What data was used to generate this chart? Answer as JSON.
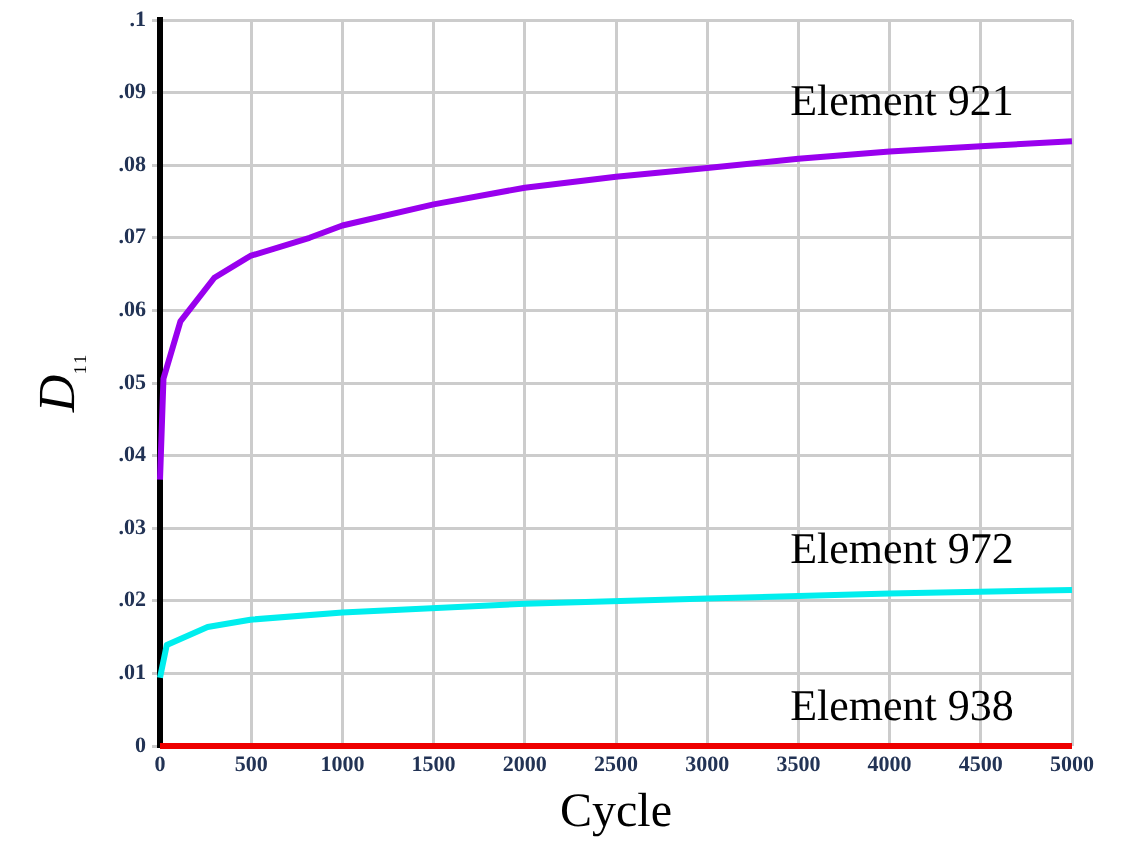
{
  "chart_data": {
    "type": "line",
    "xlabel": "Cycle",
    "ylabel": "D₁₁",
    "xlim": [
      0,
      5000
    ],
    "xticks": [
      0,
      500,
      1000,
      1500,
      2000,
      2500,
      3000,
      3500,
      4000,
      4500,
      5000
    ],
    "ylim": [
      0,
      0.1
    ],
    "yticks": [
      0,
      {
        "value": 0.01,
        "label": ".01"
      },
      {
        "value": 0.02,
        "label": ".02"
      },
      {
        "value": 0.03,
        "label": ".03"
      },
      {
        "value": 0.04,
        "label": ".04"
      },
      {
        "value": 0.05,
        "label": ".05"
      },
      {
        "value": 0.06,
        "label": ".06"
      },
      {
        "value": 0.07,
        "label": ".07"
      },
      {
        "value": 0.08,
        "label": ".08"
      },
      {
        "value": 0.09,
        "label": ".09"
      },
      {
        "value": 0.1,
        "label": ".1"
      }
    ],
    "grid": true,
    "legend": false,
    "marker": "none",
    "line_style": "solid",
    "series": [
      {
        "name": "Element 921",
        "color": "#9900ee",
        "x": [
          0,
          19,
          112,
          298,
          495,
          820,
          1000,
          1500,
          2000,
          2500,
          3000,
          3500,
          4000,
          4500,
          5000
        ],
        "values": [
          0.0367,
          0.0506,
          0.0585,
          0.0645,
          0.0675,
          0.07,
          0.0717,
          0.0746,
          0.0769,
          0.0784,
          0.0796,
          0.0809,
          0.0819,
          0.0826,
          0.0833
        ]
      },
      {
        "name": "Element 972",
        "color": "#00eeee",
        "x": [
          0,
          37,
          261,
          495,
          1000,
          2000,
          3000,
          4000,
          5000
        ],
        "values": [
          0.0094,
          0.0139,
          0.0164,
          0.0174,
          0.0184,
          0.0196,
          0.0203,
          0.021,
          0.0215
        ]
      },
      {
        "name": "Element 938",
        "color": "#ee0000",
        "x": [
          0,
          5000
        ],
        "values": [
          0,
          0
        ]
      }
    ]
  }
}
